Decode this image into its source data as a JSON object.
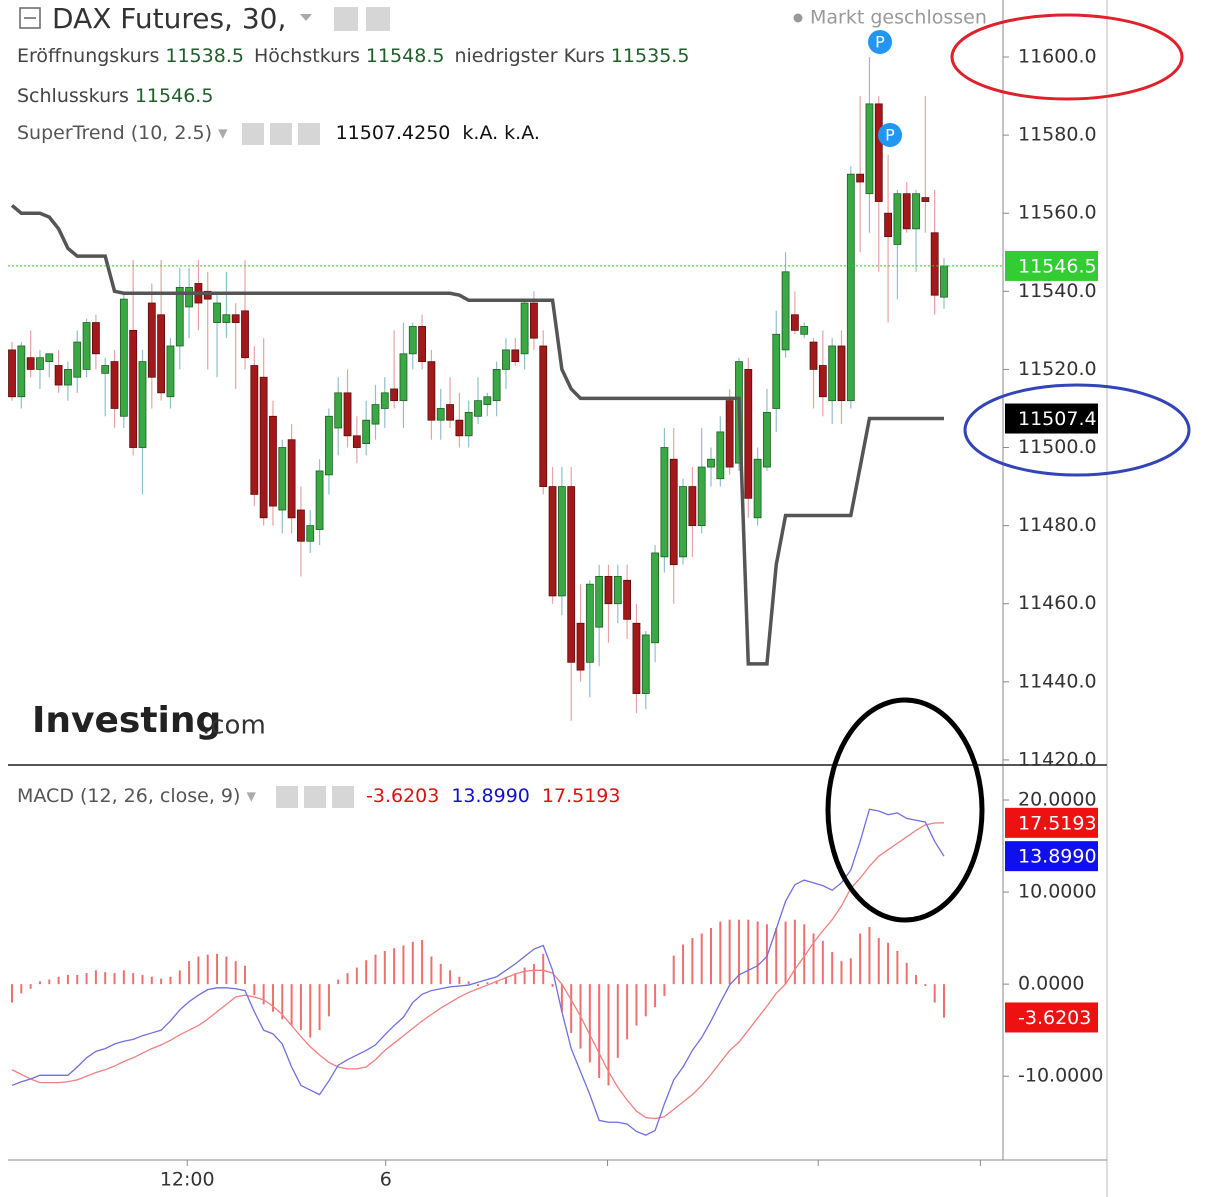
{
  "chart_data": [
    {
      "type": "candlestick",
      "title": "DAX Futures, 30,",
      "status": "Markt geschlossen",
      "ohlc_labels": [
        "Eröffnungskurs",
        "Höchstkurs",
        "niedrigster Kurs",
        "Schlusskurs"
      ],
      "open": [
        11525,
        11513,
        11523,
        11520,
        11522,
        11521,
        11516,
        11518,
        11520,
        11532,
        11519,
        11522,
        11508,
        11530,
        11500,
        11537,
        11534,
        11513,
        11526,
        11536,
        11542,
        11540,
        11532,
        11532,
        11534,
        11535,
        11521,
        11518,
        11508,
        11484,
        11502,
        11484,
        11476,
        11479,
        11493,
        11505,
        11514,
        11503,
        11501,
        11506,
        11510,
        11515,
        11512,
        11524,
        11531,
        11522,
        11507,
        11511,
        11507,
        11503,
        11508,
        11511,
        11512,
        11520,
        11525,
        11524,
        11537,
        11526,
        11490,
        11462,
        11490,
        11455,
        11445,
        11454,
        11467,
        11460,
        11466,
        11455,
        11437,
        11450,
        11472,
        11497,
        11472,
        11490,
        11480,
        11495,
        11492,
        11512,
        11496,
        11520,
        11482,
        11495,
        11510,
        11525,
        11534,
        11529,
        11527,
        11521,
        11512,
        11526,
        11512,
        11570,
        11565,
        11588,
        11560,
        11552,
        11565,
        11556,
        11564,
        11555,
        11538.5
      ],
      "high": [
        11527,
        11527,
        11530,
        11525,
        11524,
        11525,
        11522,
        11530,
        11533,
        11534,
        11523,
        11525,
        11540,
        11548,
        11525,
        11542,
        11548,
        11528,
        11546,
        11546,
        11548,
        11545,
        11540,
        11545,
        11537,
        11548,
        11526,
        11528,
        11512,
        11502,
        11506,
        11490,
        11484,
        11497,
        11510,
        11518,
        11520,
        11508,
        11512,
        11516,
        11518,
        11530,
        11532,
        11532,
        11534,
        11525,
        11515,
        11518,
        11514,
        11512,
        11518,
        11514,
        11522,
        11528,
        11528,
        11538,
        11540,
        11530,
        11495,
        11495,
        11495,
        11465,
        11466,
        11470,
        11470,
        11470,
        11470,
        11460,
        11453,
        11475,
        11505,
        11505,
        11492,
        11495,
        11505,
        11500,
        11508,
        11515,
        11523,
        11523,
        11500,
        11515,
        11535,
        11550,
        11540,
        11532,
        11528,
        11530,
        11528,
        11530,
        11572,
        11590,
        11600,
        11590,
        11575,
        11566,
        11568,
        11566,
        11590,
        11566,
        11548.5
      ],
      "low": [
        11512,
        11510,
        11518,
        11515,
        11518,
        11514,
        11512,
        11514,
        11518,
        11520,
        11508,
        11505,
        11505,
        11498,
        11488,
        11510,
        11512,
        11510,
        11520,
        11528,
        11530,
        11520,
        11518,
        11528,
        11515,
        11520,
        11485,
        11480,
        11480,
        11478,
        11478,
        11467,
        11473,
        11475,
        11488,
        11498,
        11500,
        11496,
        11498,
        11502,
        11505,
        11510,
        11505,
        11520,
        11520,
        11502,
        11502,
        11505,
        11500,
        11500,
        11506,
        11508,
        11508,
        11515,
        11521,
        11520,
        11525,
        11488,
        11460,
        11457,
        11430,
        11440,
        11436,
        11444,
        11450,
        11455,
        11451,
        11432,
        11433,
        11445,
        11468,
        11460,
        11470,
        11472,
        11478,
        11490,
        11490,
        11493,
        11494,
        11482,
        11480,
        11494,
        11504,
        11523,
        11529,
        11528,
        11510,
        11508,
        11506,
        11506,
        11510,
        11550,
        11555,
        11545,
        11532,
        11538,
        11555,
        11545,
        11555,
        11534,
        11535.5
      ],
      "close": [
        11513,
        11526,
        11520,
        11523,
        11524,
        11516,
        11520,
        11527,
        11532,
        11524,
        11521,
        11510,
        11538,
        11500,
        11522,
        11518,
        11514,
        11526,
        11541,
        11541,
        11537,
        11538,
        11537,
        11534,
        11532,
        11523,
        11488,
        11482,
        11485,
        11500,
        11482,
        11476,
        11480,
        11494,
        11508,
        11514,
        11503,
        11500,
        11507,
        11511,
        11514,
        11512,
        11524,
        11531,
        11522,
        11507,
        11510,
        11507,
        11503,
        11509,
        11512,
        11513,
        11520,
        11525,
        11522,
        11537,
        11528,
        11490,
        11462,
        11490,
        11445,
        11443,
        11465,
        11467,
        11460,
        11467,
        11456,
        11437,
        11452,
        11473,
        11500,
        11470,
        11490,
        11480,
        11495,
        11497,
        11504,
        11495,
        11522,
        11487,
        11497,
        11509,
        11529,
        11545,
        11530,
        11531,
        11520,
        11513,
        11526,
        11512,
        11570,
        11568,
        11588,
        11563,
        11554,
        11565,
        11556,
        11565,
        11563,
        11539,
        11546.5
      ],
      "up_color": "#3aa845",
      "down_color": "#a3191b",
      "up_wick": "#8fbfcf",
      "down_wick": "#e9a3a3",
      "last_price_color": "#33cc33",
      "xlim": [
        -0.43,
        106.33
      ],
      "ylim": [
        11418.7,
        11614.6
      ],
      "yticks": [
        {
          "value": 11420,
          "label": "11420.0"
        },
        {
          "value": 11440,
          "label": "11440.0"
        },
        {
          "value": 11460,
          "label": "11460.0"
        },
        {
          "value": 11480,
          "label": "11480.0"
        },
        {
          "value": 11500,
          "label": "11500.0"
        },
        {
          "value": 11520,
          "label": "11520.0"
        },
        {
          "value": 11540,
          "label": "11540.0"
        },
        {
          "value": 11560,
          "label": "11560.0"
        },
        {
          "value": 11580,
          "label": "11580.0"
        },
        {
          "value": 11600,
          "label": "11600.0"
        }
      ],
      "overlay": {
        "name": "SuperTrend (10, 2.5)",
        "color": "#555555",
        "values": [
          11562,
          11560,
          11560,
          11560,
          11559,
          11556,
          11551,
          11549,
          11549,
          11549,
          11549,
          11540,
          11539.5,
          11539.5,
          11539.5,
          11539.5,
          11539.5,
          11539.5,
          11539.5,
          11539.5,
          11539.5,
          11539.5,
          11539.5,
          11539.5,
          11539.5,
          11539.5,
          11539.5,
          11539.5,
          11539.5,
          11539.5,
          11539.5,
          11539.5,
          11539.5,
          11539.5,
          11539.5,
          11539.5,
          11539.5,
          11539.5,
          11539.5,
          11539.5,
          11539.5,
          11539.5,
          11539.5,
          11539.5,
          11539.5,
          11539.5,
          11539.5,
          11539.5,
          11539,
          11537.7,
          11537.7,
          11537.7,
          11537.7,
          11537.7,
          11537.7,
          11537.7,
          11537.7,
          11537.7,
          11537.7,
          11520,
          11515,
          11512.6,
          11512.6,
          11512.6,
          11512.6,
          11512.6,
          11512.6,
          11512.6,
          11512.6,
          11512.6,
          11512.6,
          11512.6,
          11512.6,
          11512.6,
          11512.6,
          11512.6,
          11512.6,
          11512.6,
          11512.6,
          11444.6,
          11444.6,
          11444.6,
          11470,
          11482.6,
          11482.6,
          11482.6,
          11482.6,
          11482.6,
          11482.6,
          11482.6,
          11482.6,
          11495,
          11507.425,
          11507.425,
          11507.425,
          11507.425,
          11507.425,
          11507.425,
          11507.425,
          11507.425,
          11507.425
        ],
        "last_label": "11507.4250",
        "axis_label": "11507.4",
        "extra": [
          "k.A.",
          "k.A."
        ]
      },
      "marker_labels": [
        "P",
        "P"
      ],
      "watermark": [
        "Investing",
        ".com"
      ]
    },
    {
      "type": "macd",
      "title": "MACD (12, 26, close, 9)",
      "xlim": [
        -0.43,
        106.33
      ],
      "ylim": [
        -19.1,
        23.8
      ],
      "yticks": [
        {
          "value": 20,
          "label": "20.0000"
        },
        {
          "value": 10,
          "label": "10.0000"
        },
        {
          "value": 0,
          "label": "0.0000"
        },
        {
          "value": -10,
          "label": "-10.0000"
        }
      ],
      "xticks": [
        {
          "value": 18.8,
          "label": "12:00"
        },
        {
          "value": 40.1,
          "label": "6"
        }
      ],
      "xminor_ticks": [
        63.9,
        86.5,
        103.9
      ],
      "histogram": {
        "color": "#ef6f6f",
        "values": [
          -2,
          -1,
          -0.5,
          0.3,
          0.5,
          0.8,
          1,
          1,
          1.2,
          1.5,
          1.3,
          1.2,
          1.5,
          1.2,
          1,
          0.8,
          0.6,
          0.8,
          1.5,
          2.5,
          3,
          3.2,
          3.3,
          3,
          2.5,
          2,
          -1.2,
          -2.2,
          -3,
          -3.8,
          -4.5,
          -5,
          -5.8,
          -5,
          -3.5,
          0.5,
          1.2,
          1.8,
          2.6,
          3.2,
          3.6,
          3.9,
          4.2,
          4.6,
          4.8,
          3,
          2.2,
          1.5,
          0.8,
          0.3,
          -0.2,
          0.2,
          0.4,
          0.8,
          1.2,
          1.8,
          2.2,
          3.3,
          -0.3,
          -3,
          -5.3,
          -7,
          -8.5,
          -10.2,
          -11,
          -8,
          -6,
          -4.5,
          -3.5,
          -2.5,
          -1.3,
          3.1,
          4.3,
          5,
          5.5,
          6.1,
          6.8,
          7,
          7,
          7,
          6.8,
          6.5,
          6.1,
          6.8,
          7,
          6.5,
          5.5,
          4.7,
          3.5,
          2.5,
          2.8,
          5.5,
          6.2,
          5,
          4.5,
          3.6,
          2.3,
          1,
          -0.2,
          -2,
          -3.6203
        ]
      },
      "macd": {
        "color": "#6f6fe0",
        "badge_color": "#1010ee",
        "last_label": "13.8990",
        "values": [
          -11,
          -10.6,
          -10.3,
          -9.9,
          -9.9,
          -9.9,
          -9.9,
          -9,
          -8,
          -7.3,
          -7,
          -6.5,
          -6.2,
          -6,
          -5.6,
          -5.3,
          -5,
          -4,
          -2.8,
          -1.9,
          -1.2,
          -0.6,
          -0.4,
          -0.4,
          -0.5,
          -0.7,
          -3,
          -5,
          -5.4,
          -6.5,
          -9,
          -11,
          -11.5,
          -12,
          -10.5,
          -8.8,
          -8.2,
          -7.7,
          -7.2,
          -6.6,
          -5.5,
          -4.5,
          -3.6,
          -2,
          -1.1,
          -0.7,
          -0.5,
          -0.3,
          -0.2,
          -0.1,
          0.2,
          0.5,
          0.8,
          1.5,
          2.2,
          3,
          3.8,
          4.2,
          1.5,
          -3,
          -7,
          -9.5,
          -12,
          -14.8,
          -15,
          -15,
          -15.2,
          -16,
          -16.4,
          -15.9,
          -13,
          -10.4,
          -9,
          -7.2,
          -5.8,
          -4,
          -2,
          -0.1,
          1,
          1.5,
          2,
          3,
          6,
          9,
          10.8,
          11.3,
          11,
          10.7,
          10.2,
          11,
          12.4,
          15.5,
          19,
          18.8,
          18.4,
          18.6,
          18,
          17.8,
          17.6,
          15.5,
          13.899
        ]
      },
      "signal": {
        "color": "#f08080",
        "badge_color": "#ee1111",
        "last_label": "17.5193",
        "values": [
          -9.3,
          -9.8,
          -10.3,
          -10.7,
          -10.7,
          -10.7,
          -10.6,
          -10.4,
          -10,
          -9.6,
          -9.3,
          -8.9,
          -8.4,
          -8,
          -7.5,
          -7,
          -6.6,
          -6.1,
          -5.5,
          -5,
          -4.5,
          -3.8,
          -3,
          -2.2,
          -1.4,
          -1.2,
          -1.4,
          -1.7,
          -2.4,
          -3.3,
          -4.5,
          -5.7,
          -6.8,
          -7.7,
          -8.5,
          -9,
          -9.2,
          -9.2,
          -9,
          -8.2,
          -7.2,
          -6.4,
          -5.6,
          -4.8,
          -4,
          -3.3,
          -2.6,
          -2,
          -1.4,
          -0.9,
          -0.5,
          -0.1,
          0.3,
          0.7,
          1.1,
          1.4,
          1.5,
          1.5,
          1.2,
          0,
          -1.7,
          -3.5,
          -5.5,
          -7.5,
          -9.5,
          -11.2,
          -12.6,
          -13.8,
          -14.5,
          -14.6,
          -14.4,
          -13.6,
          -12.8,
          -12,
          -11,
          -9.8,
          -8.5,
          -7.2,
          -6.3,
          -5,
          -3.7,
          -2.4,
          -1,
          0,
          1.6,
          3,
          4.5,
          5.8,
          7,
          8.5,
          10.4,
          11.5,
          12.8,
          13.9,
          14.6,
          15.3,
          16,
          16.7,
          17.3,
          17.5,
          17.519
        ]
      }
    }
  ]
}
